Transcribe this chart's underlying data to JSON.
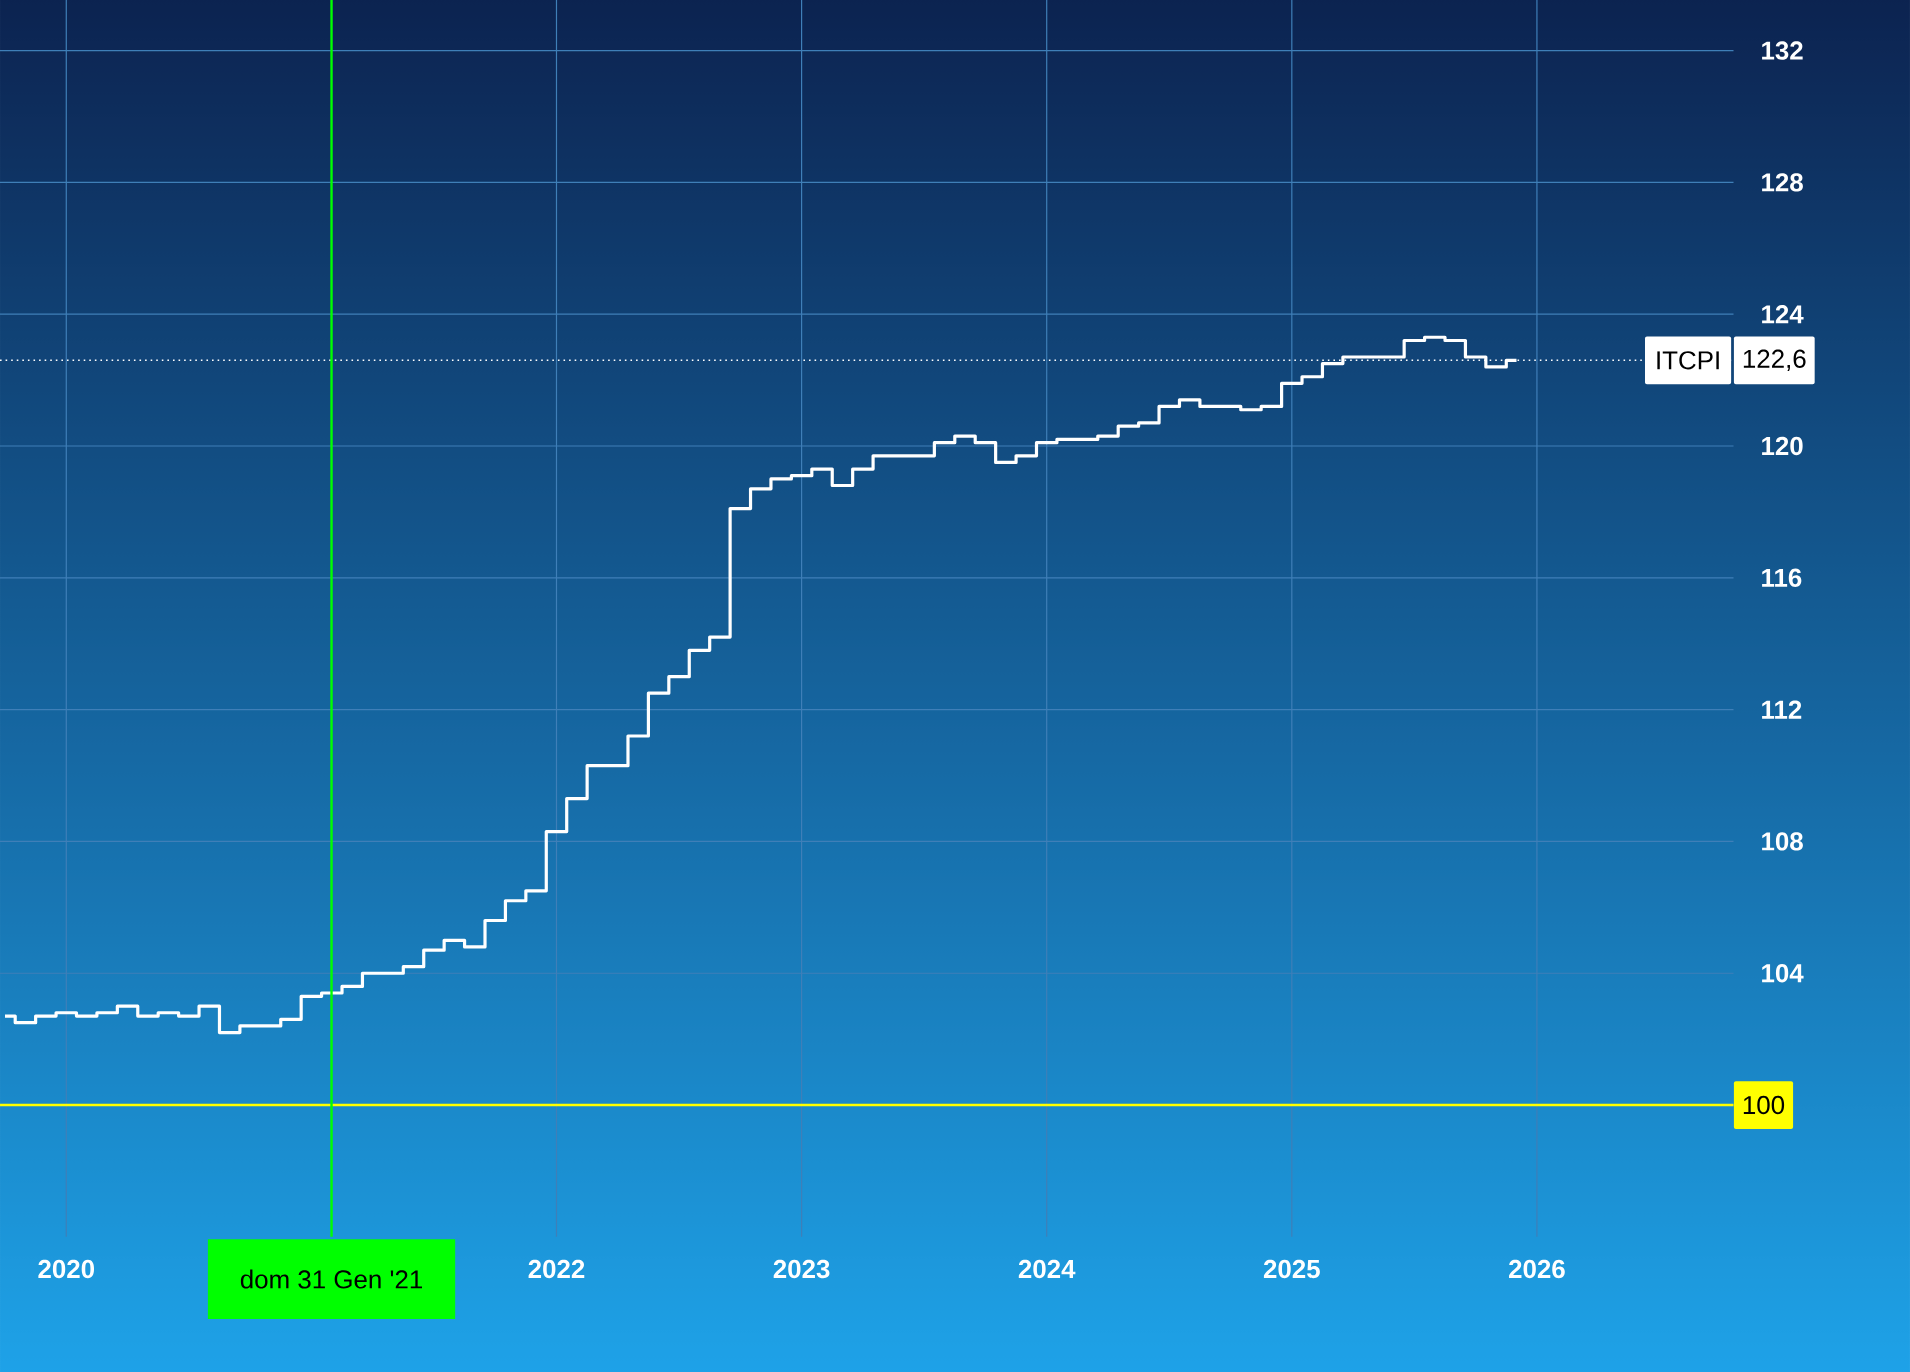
{
  "chart_data": {
    "type": "step",
    "grid": true,
    "marker": "none",
    "x": [
      "2019-10",
      "2019-11",
      "2019-12",
      "2020-01",
      "2020-02",
      "2020-03",
      "2020-04",
      "2020-05",
      "2020-06",
      "2020-07",
      "2020-08",
      "2020-09",
      "2020-10",
      "2020-11",
      "2020-12",
      "2021-01",
      "2021-02",
      "2021-03",
      "2021-04",
      "2021-05",
      "2021-06",
      "2021-07",
      "2021-08",
      "2021-09",
      "2021-10",
      "2021-11",
      "2021-12",
      "2022-01",
      "2022-02",
      "2022-03",
      "2022-04",
      "2022-05",
      "2022-06",
      "2022-07",
      "2022-08",
      "2022-09",
      "2022-10",
      "2022-11",
      "2022-12",
      "2023-01",
      "2023-02",
      "2023-03",
      "2023-04",
      "2023-05",
      "2023-06",
      "2023-07",
      "2023-08",
      "2023-09",
      "2023-10",
      "2023-11",
      "2023-12",
      "2024-01",
      "2024-02",
      "2024-03",
      "2024-04",
      "2024-05",
      "2024-06",
      "2024-07",
      "2024-08",
      "2024-09",
      "2024-10",
      "2024-11",
      "2024-12",
      "2025-01",
      "2025-02",
      "2025-03",
      "2025-04",
      "2025-05",
      "2025-06",
      "2025-07",
      "2025-08",
      "2025-09",
      "2025-10",
      "2025-11",
      "2025-12"
    ],
    "series": [
      {
        "name": "ITCPI",
        "color": "#ffffff",
        "values": [
          102.7,
          102.5,
          102.7,
          102.8,
          102.7,
          102.8,
          103.0,
          102.7,
          102.8,
          102.7,
          103.0,
          102.2,
          102.4,
          102.4,
          102.6,
          103.3,
          103.4,
          103.6,
          104.0,
          104.0,
          104.2,
          104.7,
          105.0,
          104.8,
          105.6,
          106.2,
          106.5,
          108.3,
          109.3,
          110.3,
          110.3,
          111.2,
          112.5,
          113.0,
          113.8,
          114.2,
          118.1,
          118.7,
          119.0,
          119.1,
          119.3,
          118.8,
          119.3,
          119.7,
          119.7,
          119.7,
          120.1,
          120.3,
          120.1,
          119.5,
          119.7,
          120.1,
          120.2,
          120.2,
          120.3,
          120.6,
          120.7,
          121.2,
          121.4,
          121.2,
          121.2,
          121.1,
          121.2,
          121.9,
          122.1,
          122.5,
          122.7,
          122.7,
          122.7,
          123.2,
          123.3,
          123.2,
          122.7,
          122.4,
          122.6
        ]
      }
    ],
    "xlim": [
      "2019-09-24",
      "2026-10-20"
    ],
    "xticks": [
      "2020",
      "2022",
      "2023",
      "2024",
      "2025",
      "2026"
    ],
    "ylim": [
      96,
      135
    ],
    "yticks": [
      104,
      108,
      112,
      116,
      120,
      124,
      128,
      132
    ],
    "ref_lines": [
      {
        "axis": "y",
        "value": 100,
        "label": "100",
        "color": "#ffff00",
        "line_style": "solid"
      },
      {
        "axis": "y",
        "value": 122.6,
        "label": "122,6",
        "color": "#ffffff",
        "line_style": "dotted"
      },
      {
        "axis": "x",
        "value": "2021-01-31",
        "label": "dom 31 Gen '21",
        "color": "#00ff00",
        "line_style": "solid"
      }
    ]
  }
}
